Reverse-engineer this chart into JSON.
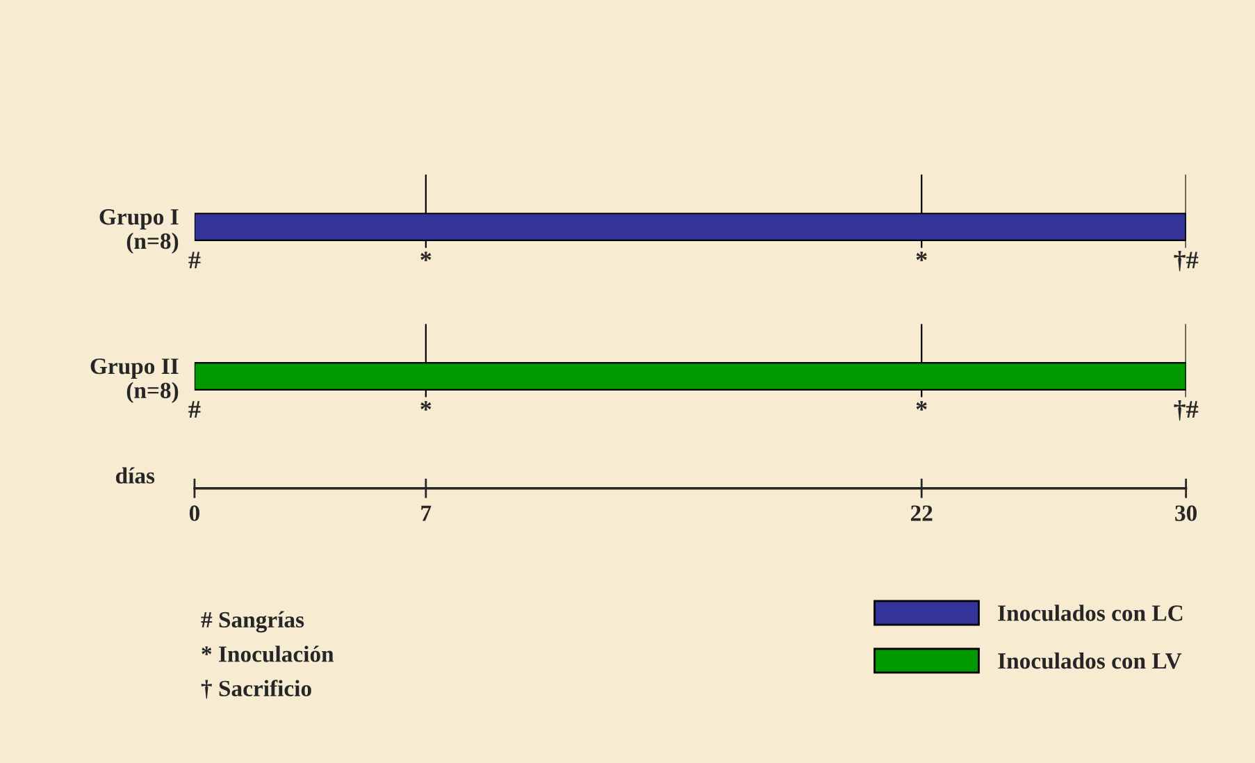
{
  "chart_data": {
    "type": "bar",
    "orientation": "horizontal",
    "stacked": true,
    "categories": [
      "Grupo I\n(n=8)",
      "Grupo II\n(n=8)"
    ],
    "series": [
      {
        "name": "Inoculados con LC",
        "color": "#333399",
        "values": [
          30,
          null
        ]
      },
      {
        "name": "Inoculados con LV",
        "color": "#009900",
        "values": [
          null,
          30
        ]
      }
    ],
    "xlabel": "días",
    "xlim": [
      0,
      30
    ],
    "xticks": [
      0,
      7,
      22,
      30
    ],
    "ref_lines": [
      {
        "axis": "x",
        "value": 7,
        "label": null,
        "color": "#000000"
      },
      {
        "axis": "x",
        "value": 22,
        "label": null,
        "color": "#000000"
      },
      {
        "axis": "x",
        "value": 30,
        "label": null,
        "color": "#000000"
      }
    ],
    "annotations": [
      {
        "text": "#",
        "x": 0,
        "y": "Grupo I\n(n=8)"
      },
      {
        "text": "*",
        "x": 7,
        "y": "Grupo I\n(n=8)"
      },
      {
        "text": "*",
        "x": 22,
        "y": "Grupo I\n(n=8)"
      },
      {
        "text": "†#",
        "x": 30,
        "y": "Grupo I\n(n=8)"
      },
      {
        "text": "#",
        "x": 0,
        "y": "Grupo II\n(n=8)"
      },
      {
        "text": "*",
        "x": 7,
        "y": "Grupo II\n(n=8)"
      },
      {
        "text": "*",
        "x": 22,
        "y": "Grupo II\n(n=8)"
      },
      {
        "text": "†#",
        "x": 30,
        "y": "Grupo II\n(n=8)"
      },
      "# Sangrías",
      "* Inoculación",
      "† Sacrificio"
    ],
    "legend": "bottom right",
    "grid": false
  }
}
